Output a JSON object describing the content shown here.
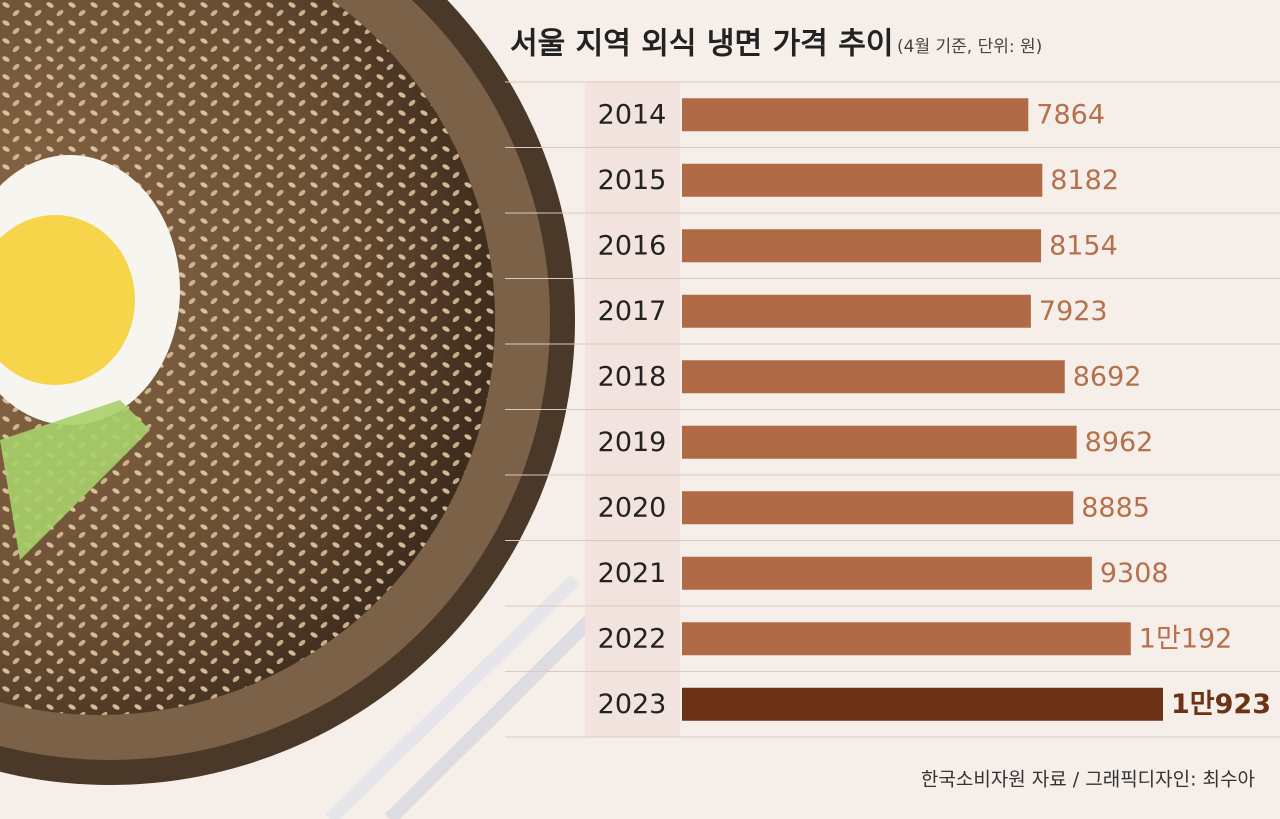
{
  "chart_data": {
    "type": "bar",
    "orientation": "horizontal",
    "title": "서울 지역 외식 냉면 가격 추이",
    "subtitle": "(4월 기준, 단위: 원)",
    "source": "한국소비자원 자료 / 그래픽디자인: 최수아",
    "categories": [
      "2014",
      "2015",
      "2016",
      "2017",
      "2018",
      "2019",
      "2020",
      "2021",
      "2022",
      "2023"
    ],
    "values": [
      7864,
      8182,
      8154,
      7923,
      8692,
      8962,
      8885,
      9308,
      10192,
      10923
    ],
    "value_labels": [
      "7864",
      "8182",
      "8154",
      "7923",
      "8692",
      "8962",
      "8885",
      "9308",
      "1만192",
      "1만923"
    ],
    "colors": [
      "#b06a45",
      "#b06a45",
      "#b06a45",
      "#b06a45",
      "#b06a45",
      "#b06a45",
      "#b06a45",
      "#b06a45",
      "#b06a45",
      "#6b3215"
    ]
  }
}
